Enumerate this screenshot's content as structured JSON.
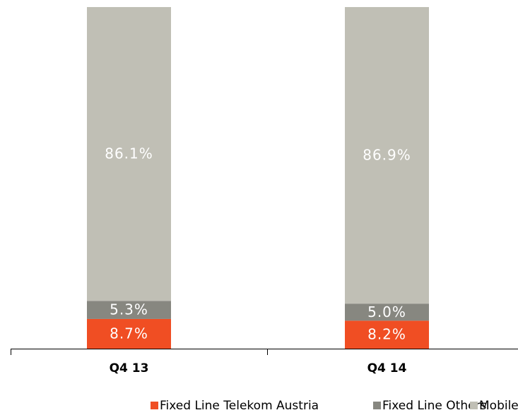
{
  "chart_data": {
    "type": "stacked_bar",
    "categories": [
      "Q4 13",
      "Q4 14"
    ],
    "series": [
      {
        "name": "Fixed Line Telekom Austria",
        "color": "#f04e23",
        "values": [
          8.7,
          8.2
        ],
        "value_labels": [
          "8.7%",
          "8.2%"
        ]
      },
      {
        "name": "Fixed Line Others",
        "color": "#878780",
        "values": [
          5.3,
          5.0
        ],
        "value_labels": [
          "5.3%",
          "5.0%"
        ]
      },
      {
        "name": "Mobile",
        "color": "#c0bfb5",
        "values": [
          86.1,
          86.9
        ],
        "value_labels": [
          "86.1%",
          "86.9%"
        ]
      }
    ],
    "ylim": [
      0,
      100
    ]
  }
}
